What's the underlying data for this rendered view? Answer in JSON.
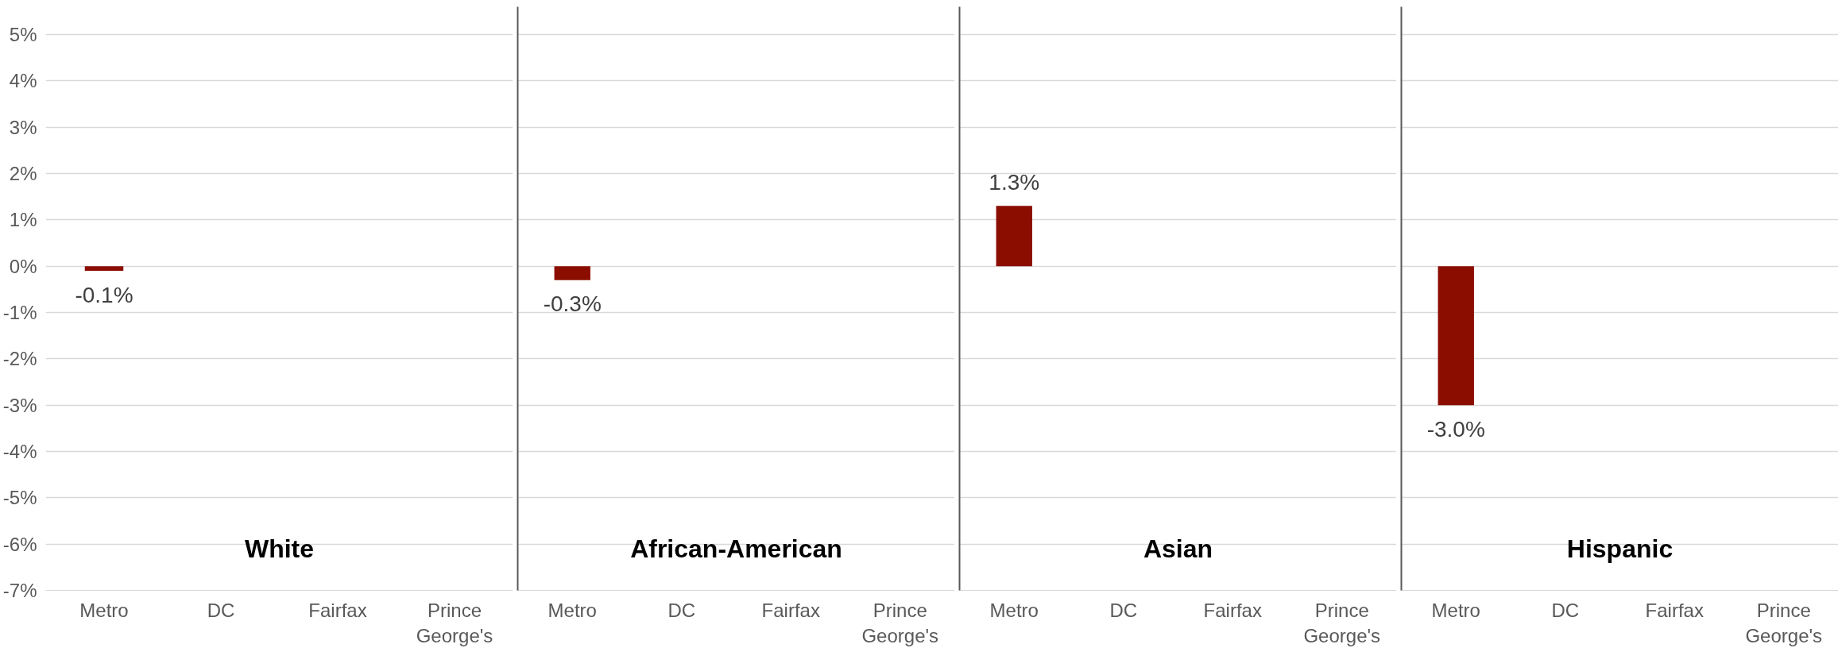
{
  "chart_data": [
    {
      "type": "bar",
      "categories": [
        "Metro",
        "DC",
        "Fairfax",
        "Prince George's"
      ],
      "values": [
        -0.1,
        null,
        null,
        null
      ],
      "value_labels": [
        "-0.1%",
        null,
        null,
        null
      ],
      "color": "#8b0d00",
      "ylim": [
        -7,
        5.6
      ],
      "yticks": [
        {
          "value": -7,
          "label": "-7%"
        },
        {
          "value": -6,
          "label": "-6%"
        },
        {
          "value": -5,
          "label": "-5%"
        },
        {
          "value": -4,
          "label": "-4%"
        },
        {
          "value": -3,
          "label": "-3%"
        },
        {
          "value": -2,
          "label": "-2%"
        },
        {
          "value": -1,
          "label": "-1%"
        },
        {
          "value": 0,
          "label": "0%"
        },
        {
          "value": 1,
          "label": "1%"
        },
        {
          "value": 2,
          "label": "2%"
        },
        {
          "value": 3,
          "label": "3%"
        },
        {
          "value": 4,
          "label": "4%"
        },
        {
          "value": 5,
          "label": "5%"
        }
      ],
      "grid": "y",
      "annotations": [
        "White"
      ]
    },
    {
      "type": "bar",
      "categories": [
        "Metro",
        "DC",
        "Fairfax",
        "Prince George's"
      ],
      "values": [
        -0.3,
        null,
        null,
        null
      ],
      "value_labels": [
        "-0.3%",
        null,
        null,
        null
      ],
      "color": "#8b0d00",
      "ylim": [
        -7,
        5.6
      ],
      "yticks": [
        -7,
        -6,
        -5,
        -4,
        -3,
        -2,
        -1,
        0,
        1,
        2,
        3,
        4,
        5
      ],
      "grid": "y",
      "tick_labels": "x",
      "annotations": [
        "African-American"
      ]
    },
    {
      "type": "bar",
      "categories": [
        "Metro",
        "DC",
        "Fairfax",
        "Prince George's"
      ],
      "values": [
        1.3,
        null,
        null,
        null
      ],
      "value_labels": [
        "1.3%",
        null,
        null,
        null
      ],
      "color": "#8b0d00",
      "ylim": [
        -7,
        5.6
      ],
      "yticks": [
        -7,
        -6,
        -5,
        -4,
        -3,
        -2,
        -1,
        0,
        1,
        2,
        3,
        4,
        5
      ],
      "grid": "y",
      "tick_labels": "x",
      "annotations": [
        "Asian"
      ]
    },
    {
      "type": "bar",
      "categories": [
        "Metro",
        "DC",
        "Fairfax",
        "Prince George's"
      ],
      "values": [
        -3.0,
        null,
        null,
        null
      ],
      "value_labels": [
        "-3.0%",
        null,
        null,
        null
      ],
      "color": "#8b0d00",
      "ylim": [
        -7,
        5.6
      ],
      "yticks": [
        -7,
        -6,
        -5,
        -4,
        -3,
        -2,
        -1,
        0,
        1,
        2,
        3,
        4,
        5
      ],
      "grid": "y",
      "tick_labels": "x",
      "annotations": [
        "Hispanic"
      ]
    }
  ]
}
